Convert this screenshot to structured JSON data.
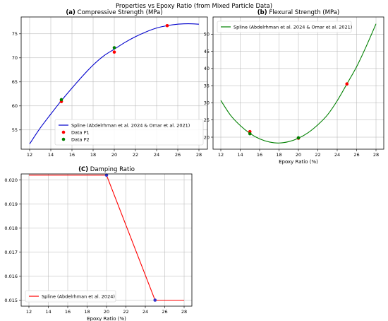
{
  "suptitle": "Properties vs Epoxy Ratio (from Mixed Particle Data)",
  "chart_data": [
    {
      "type": "line",
      "title": "(a) Compressive Strength (MPa)",
      "title_prefix": "(a)",
      "title_text": "Compressive Strength (MPa)",
      "xlabel": "",
      "ylabel": "",
      "xlim": [
        11.2,
        28.8
      ],
      "ylim": [
        51,
        78.5
      ],
      "xticks": [
        12,
        14,
        16,
        18,
        20,
        22,
        24,
        26,
        28
      ],
      "yticks": [
        55,
        60,
        65,
        70,
        75
      ],
      "grid": true,
      "legend_position": "lower-right",
      "series": [
        {
          "name": "Spline (Abdelrhman et al. 2024 & Omar et al. 2021)",
          "kind": "line",
          "color": "#0000cc",
          "x": [
            12,
            13,
            14,
            15,
            16,
            17,
            18,
            19,
            20,
            21,
            22,
            23,
            24,
            25,
            26,
            27,
            28
          ],
          "y": [
            52.1,
            55.4,
            58.3,
            61.1,
            63.7,
            66.2,
            68.5,
            70.4,
            71.8,
            73.2,
            74.4,
            75.4,
            76.2,
            76.7,
            77.0,
            77.1,
            77.0
          ]
        },
        {
          "name": "Data P1",
          "kind": "scatter",
          "color": "#ff0000",
          "x": [
            15,
            20,
            25
          ],
          "y": [
            60.9,
            71.2,
            76.7
          ]
        },
        {
          "name": "Data P2",
          "kind": "scatter",
          "color": "#008000",
          "x": [
            15,
            20
          ],
          "y": [
            61.3,
            72.1
          ]
        }
      ]
    },
    {
      "type": "line",
      "title": "(b) Flexural Strength (MPa)",
      "title_prefix": "(b)",
      "title_text": "Flexural Strength (MPa)",
      "xlabel": "Epoxy Ratio (%)",
      "ylabel": "",
      "xlim": [
        11.2,
        28.8
      ],
      "ylim": [
        16.5,
        55
      ],
      "xticks": [
        12,
        14,
        16,
        18,
        20,
        22,
        24,
        26,
        28
      ],
      "yticks": [
        20,
        25,
        30,
        35,
        40,
        45,
        50
      ],
      "grid": true,
      "legend_position": "upper-left",
      "series": [
        {
          "name": "Spline (Abdelrhman et al. 2024 & Omar et al. 2021)",
          "kind": "line",
          "color": "#008000",
          "x": [
            12,
            13,
            14,
            15,
            16,
            17,
            18,
            19,
            20,
            21,
            22,
            23,
            24,
            25,
            26,
            27,
            28
          ],
          "y": [
            30.7,
            26.4,
            23.4,
            21.1,
            19.5,
            18.6,
            18.3,
            18.7,
            19.7,
            21.3,
            23.6,
            26.5,
            30.6,
            35.5,
            40.5,
            46.5,
            53.0
          ]
        },
        {
          "name": "",
          "kind": "scatter",
          "color": "#ff0000",
          "x": [
            15,
            20,
            25
          ],
          "y": [
            21.6,
            19.7,
            35.5
          ]
        },
        {
          "name": "",
          "kind": "scatter",
          "color": "#008000",
          "x": [
            15,
            20
          ],
          "y": [
            21.0,
            19.8
          ]
        }
      ]
    },
    {
      "type": "line",
      "title": "(C) Damping Ratio",
      "title_prefix": "(C)",
      "title_text": "Damping Ratio",
      "xlabel": "Epoxy Ratio (%)",
      "ylabel": "",
      "xlim": [
        11.2,
        28.8
      ],
      "ylim": [
        0.01475,
        0.02025
      ],
      "xticks": [
        12,
        14,
        16,
        18,
        20,
        22,
        24,
        26,
        28
      ],
      "yticks": [
        0.015,
        0.016,
        0.017,
        0.018,
        0.019,
        0.02
      ],
      "ytick_decimals": 3,
      "grid": true,
      "legend_position": "lower-left",
      "series": [
        {
          "name": "Spline (Abdelrhman et al. 2024)",
          "kind": "line",
          "color": "#ff0000",
          "x": [
            12,
            20,
            25,
            28
          ],
          "y": [
            0.0202,
            0.0202,
            0.015,
            0.015
          ]
        },
        {
          "name": "",
          "kind": "scatter",
          "color": "#3333cc",
          "x": [
            20,
            25
          ],
          "y": [
            0.0202,
            0.015
          ]
        }
      ]
    }
  ]
}
